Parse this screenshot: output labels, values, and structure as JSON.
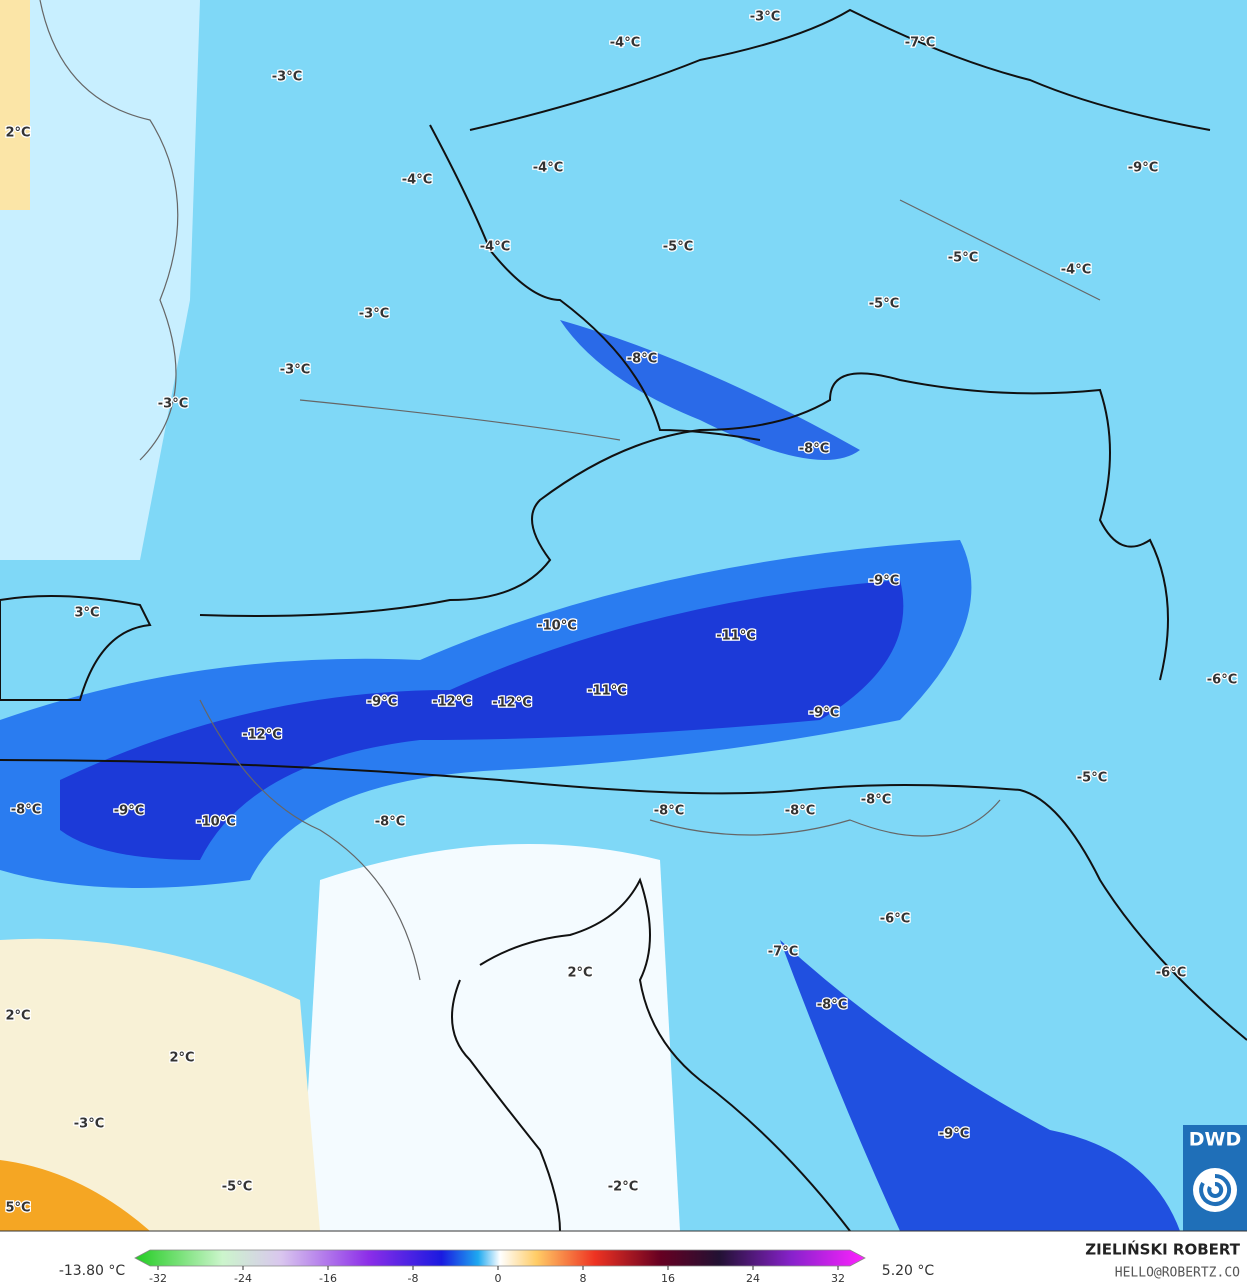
{
  "map": {
    "labels": [
      "-3°C",
      "-4°C",
      "-7°C",
      "-3°C",
      "2°C",
      "-4°C",
      "-4°C",
      "-9°C",
      "-4°C",
      "-5°C",
      "-5°C",
      "-4°C",
      "-5°C",
      "-3°C",
      "-3°C",
      "-8°C",
      "-3°C",
      "-8°C",
      "-9°C",
      "3°C",
      "-10°C",
      "-11°C",
      "-6°C",
      "-11°C",
      "-9°C",
      "-12°C",
      "-12°C",
      "-9°C",
      "-12°C",
      "-5°C",
      "-8°C",
      "-9°C",
      "-8°C",
      "-8°C",
      "-8°C",
      "-10°C",
      "-8°C",
      "-6°C",
      "-7°C",
      "-6°C",
      "2°C",
      "-8°C",
      "2°C",
      "2°C",
      "-3°C",
      "-9°C",
      "-2°C",
      "-5°C",
      "5°C"
    ],
    "logo": "DWD"
  },
  "colorbar": {
    "min_label": "-13.80 °C",
    "max_label": "5.20 °C",
    "ticks": [
      -32,
      -24,
      -16,
      -8,
      0,
      8,
      16,
      24,
      32
    ]
  },
  "footer": {
    "author": "ZIELIŃSKI ROBERT",
    "email": "HELLO@ROBERTZ.CO"
  }
}
